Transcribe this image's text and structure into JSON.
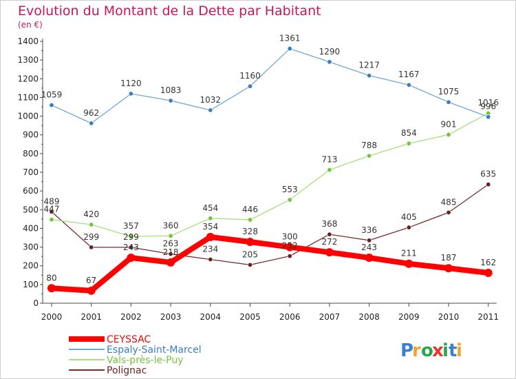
{
  "page": {
    "title": "Evolution du Montant de la Dette par Habitant",
    "subtitle": "(en €)"
  },
  "logo": {
    "letters": [
      {
        "ch": "P",
        "color": "#3a7fd0"
      },
      {
        "ch": "r",
        "color": "#f2a32b"
      },
      {
        "ch": "o",
        "color": "#2aa44f"
      },
      {
        "ch": "x",
        "color": "#e8382e"
      },
      {
        "ch": "i",
        "color": "#2aa44f"
      },
      {
        "ch": "t",
        "color": "#3a7fd0"
      },
      {
        "ch": "i",
        "color": "#f2a32b"
      }
    ]
  },
  "chart_data": {
    "type": "line",
    "title": "Evolution du Montant de la Dette par Habitant",
    "subtitle": "(en €)",
    "xlabel": "",
    "ylabel": "",
    "x": [
      "2000",
      "2001",
      "2002",
      "2003",
      "2004",
      "2005",
      "2006",
      "2007",
      "2008",
      "2009",
      "2010",
      "2011"
    ],
    "ylim": [
      0,
      1400
    ],
    "yticks": [
      0,
      100,
      200,
      300,
      400,
      500,
      600,
      700,
      800,
      900,
      1000,
      1100,
      1200,
      1300,
      1400
    ],
    "grid": false,
    "legend_position": "bottom-left",
    "series": [
      {
        "name": "CEYSSAC",
        "color": "#ff0000",
        "marker_color": "#ff0000",
        "values": [
          80,
          67,
          243,
          218,
          354,
          328,
          300,
          272,
          243,
          211,
          187,
          162
        ],
        "labels": [
          "80",
          "67",
          "243",
          "218",
          "354",
          "328",
          "300",
          "272",
          "243",
          "211",
          "187",
          "162"
        ]
      },
      {
        "name": "Espaly-Saint-Marcel",
        "color": "#6fa7d8",
        "marker_color": "#3a7cc2",
        "values": [
          1059,
          962,
          1120,
          1083,
          1032,
          1160,
          1361,
          1290,
          1217,
          1167,
          1075,
          996
        ],
        "labels": [
          "1059",
          "962",
          "1120",
          "1083",
          "1032",
          "1160",
          "1361",
          "1290",
          "1217",
          "1167",
          "1075",
          "996"
        ]
      },
      {
        "name": "Vals-près-le-Puy",
        "color": "#a6e07a",
        "marker_color": "#74c43e",
        "values": [
          447,
          420,
          357,
          360,
          454,
          446,
          553,
          713,
          788,
          854,
          901,
          1016
        ],
        "labels": [
          "447",
          "420",
          "357",
          "360",
          "454",
          "446",
          "553",
          "713",
          "788",
          "854",
          "901",
          "1016"
        ]
      },
      {
        "name": "Polignac",
        "color": "#7b2a2a",
        "marker_color": "#6b1f1f",
        "values": [
          489,
          299,
          299,
          263,
          234,
          205,
          252,
          368,
          336,
          405,
          485,
          635
        ],
        "labels": [
          "489",
          "299",
          "299",
          "263",
          "234",
          "205",
          "252",
          "368",
          "336",
          "405",
          "485",
          "635"
        ]
      }
    ]
  }
}
